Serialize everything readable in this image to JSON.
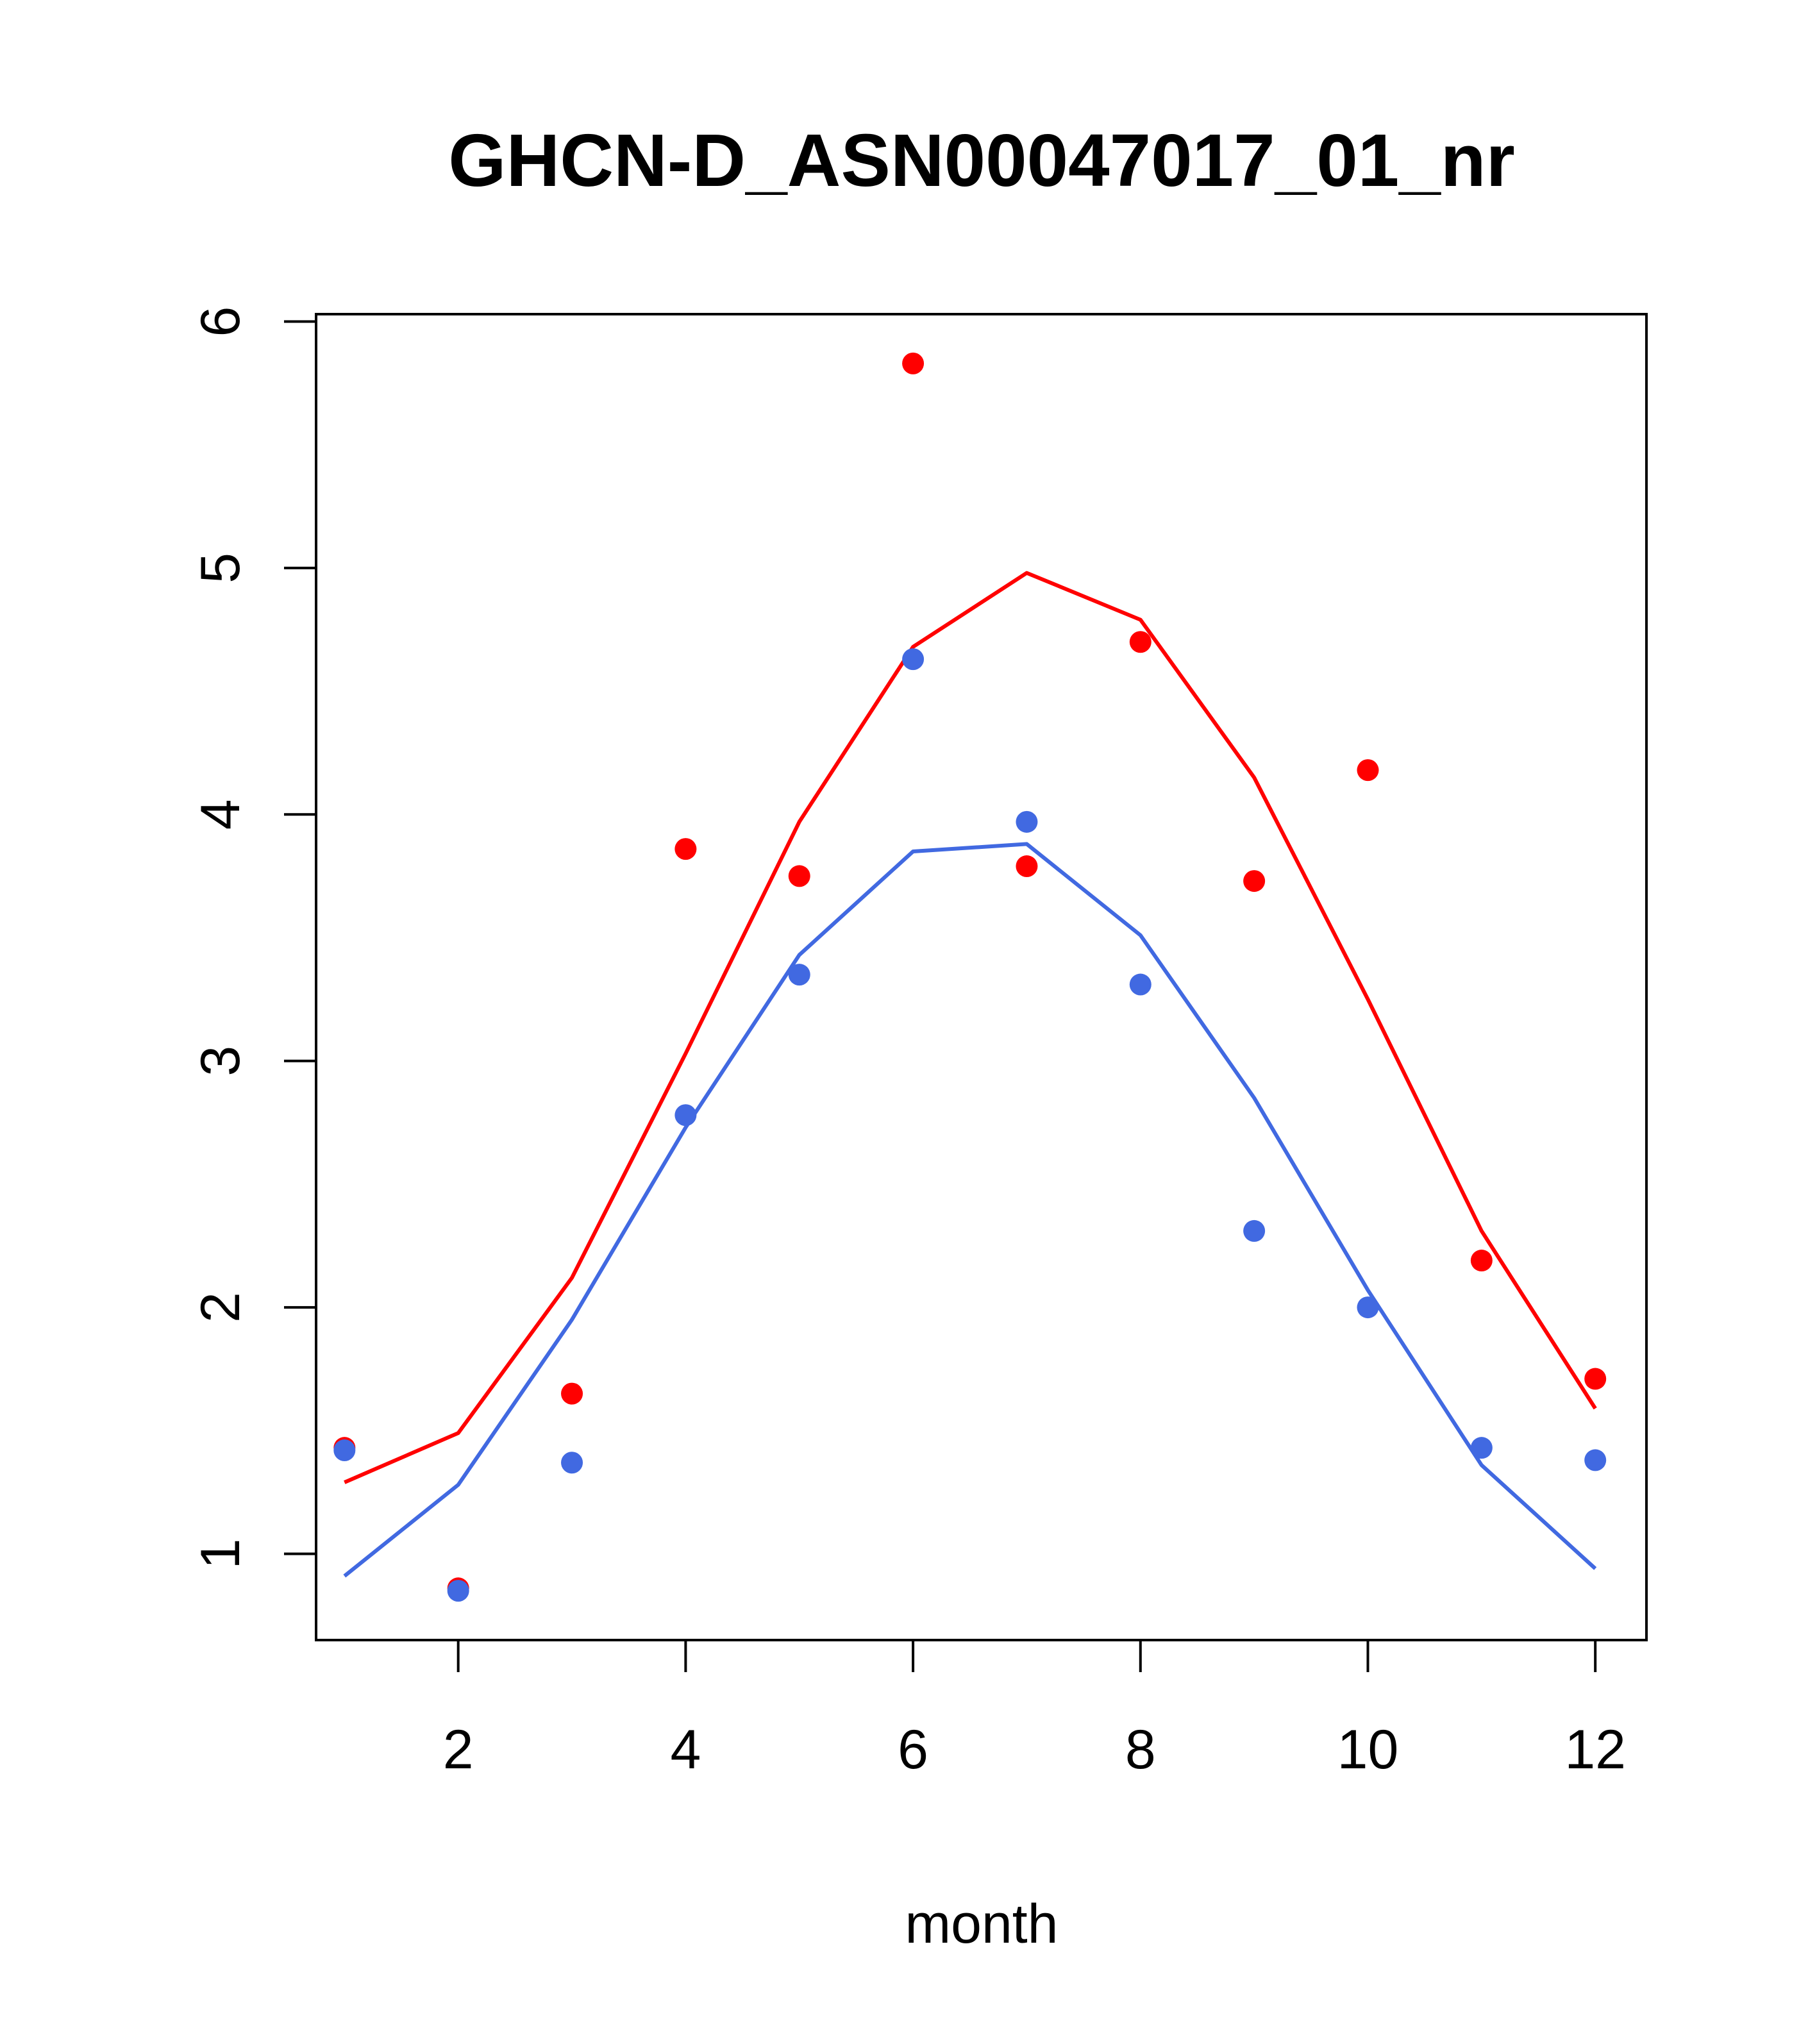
{
  "chart_data": {
    "type": "scatter",
    "title": "GHCN-D_ASN00047017_01_nr",
    "xlabel": "month",
    "ylabel": "",
    "xlim": [
      0.75,
      12.45
    ],
    "ylim": [
      0.65,
      6.03
    ],
    "x_ticks": [
      2,
      4,
      6,
      8,
      10,
      12
    ],
    "y_ticks": [
      1,
      2,
      3,
      4,
      5,
      6
    ],
    "grid": false,
    "legend": "none",
    "x": [
      1,
      2,
      3,
      4,
      5,
      6,
      7,
      8,
      9,
      10,
      11,
      12
    ],
    "series": [
      {
        "kind": "points",
        "color": "#ff0000",
        "values": [
          1.43,
          0.86,
          1.65,
          3.86,
          3.75,
          5.83,
          3.79,
          4.7,
          3.73,
          4.18,
          2.19,
          1.71
        ]
      },
      {
        "kind": "points",
        "color": "#4169e1",
        "values": [
          1.42,
          0.85,
          1.37,
          2.78,
          3.35,
          4.63,
          3.97,
          3.31,
          2.31,
          2.0,
          1.43,
          1.38
        ]
      },
      {
        "kind": "line",
        "color": "#ff0000",
        "values": [
          1.29,
          1.49,
          2.12,
          3.03,
          3.97,
          4.68,
          4.98,
          4.79,
          4.15,
          3.25,
          2.31,
          1.59
        ]
      },
      {
        "kind": "line",
        "color": "#4169e1",
        "values": [
          0.91,
          1.28,
          1.95,
          2.73,
          3.43,
          3.85,
          3.88,
          3.51,
          2.85,
          2.07,
          1.36,
          0.94
        ]
      }
    ]
  }
}
